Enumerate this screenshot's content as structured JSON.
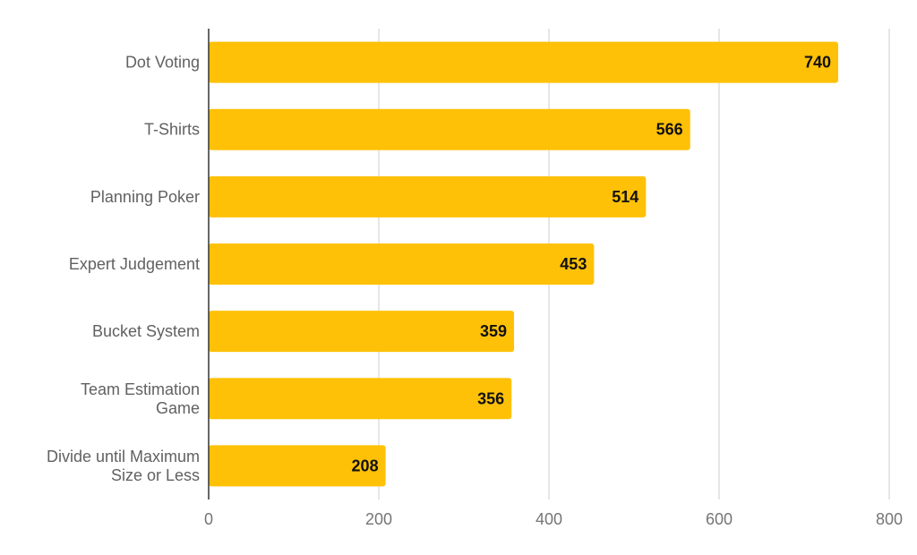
{
  "chart_data": {
    "type": "bar",
    "orientation": "horizontal",
    "title": "",
    "xlabel": "",
    "ylabel": "",
    "categories": [
      [
        "Dot Voting"
      ],
      [
        "T-Shirts"
      ],
      [
        "Planning Poker"
      ],
      [
        "Expert Judgement"
      ],
      [
        "Bucket System"
      ],
      [
        "Team Estimation",
        "Game"
      ],
      [
        "Divide until Maximum",
        "Size or Less"
      ]
    ],
    "values": [
      740,
      566,
      514,
      453,
      359,
      356,
      208
    ],
    "value_labels": [
      "740",
      "566",
      "514",
      "453",
      "359",
      "356",
      "208"
    ],
    "xlim": [
      0,
      800
    ],
    "ticks": [
      0,
      200,
      400,
      600,
      800
    ],
    "tick_labels": [
      "0",
      "200",
      "400",
      "600",
      "800"
    ],
    "bar_color": "#FFC107",
    "grid": true,
    "legend": "none"
  }
}
